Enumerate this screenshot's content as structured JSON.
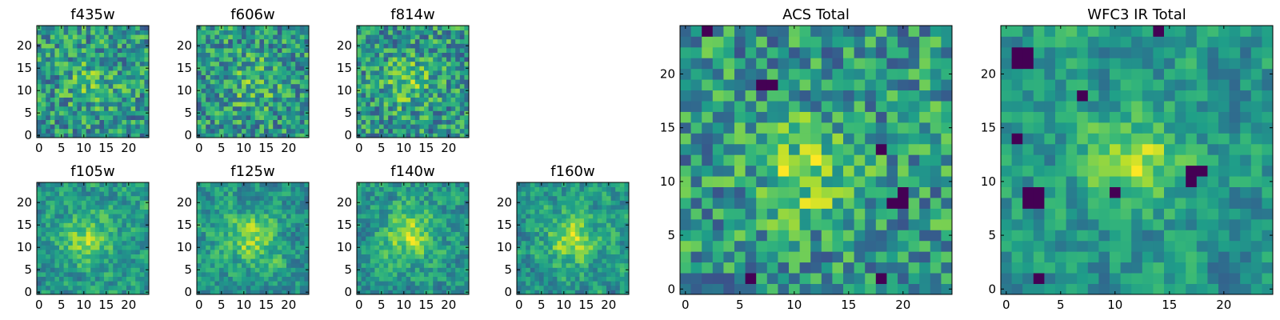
{
  "chart_data": [
    {
      "type": "heatmap",
      "title": "f435w",
      "grid_size": 25,
      "xlim": [
        0,
        24
      ],
      "ylim": [
        0,
        24
      ],
      "xticks": [
        0,
        5,
        10,
        15,
        20
      ],
      "yticks": [
        0,
        5,
        10,
        15,
        20
      ],
      "xtick_labels": [
        "0",
        "5",
        "10",
        "15",
        "20"
      ],
      "ytick_labels": [
        "0",
        "5",
        "10",
        "15",
        "20"
      ],
      "colormap": "viridis",
      "seed": 11,
      "blob_center": [
        12,
        12
      ],
      "blob_amp": 0.15,
      "blob_sigma": 4
    },
    {
      "type": "heatmap",
      "title": "f606w",
      "grid_size": 25,
      "xlim": [
        0,
        24
      ],
      "ylim": [
        0,
        24
      ],
      "xticks": [
        0,
        5,
        10,
        15,
        20
      ],
      "yticks": [
        0,
        5,
        10,
        15,
        20
      ],
      "xtick_labels": [
        "0",
        "5",
        "10",
        "15",
        "20"
      ],
      "ytick_labels": [
        "0",
        "5",
        "10",
        "15",
        "20"
      ],
      "colormap": "viridis",
      "seed": 23,
      "blob_center": [
        12,
        12
      ],
      "blob_amp": 0.15,
      "blob_sigma": 4
    },
    {
      "type": "heatmap",
      "title": "f814w",
      "grid_size": 25,
      "xlim": [
        0,
        24
      ],
      "ylim": [
        0,
        24
      ],
      "xticks": [
        0,
        5,
        10,
        15,
        20
      ],
      "yticks": [
        0,
        5,
        10,
        15,
        20
      ],
      "xtick_labels": [
        "0",
        "5",
        "10",
        "15",
        "20"
      ],
      "ytick_labels": [
        "0",
        "5",
        "10",
        "15",
        "20"
      ],
      "colormap": "viridis",
      "seed": 37,
      "blob_center": [
        11,
        12
      ],
      "blob_amp": 0.2,
      "blob_sigma": 4
    },
    {
      "type": "heatmap",
      "title": "f105w",
      "grid_size": 25,
      "xlim": [
        0,
        24
      ],
      "ylim": [
        0,
        24
      ],
      "xticks": [
        0,
        5,
        10,
        15,
        20
      ],
      "yticks": [
        0,
        5,
        10,
        15,
        20
      ],
      "xtick_labels": [
        "0",
        "5",
        "10",
        "15",
        "20"
      ],
      "ytick_labels": [
        "0",
        "5",
        "10",
        "15",
        "20"
      ],
      "colormap": "viridis",
      "seed": 41,
      "blob_center": [
        11,
        12
      ],
      "blob_amp": 0.3,
      "blob_sigma": 4,
      "smooth": true
    },
    {
      "type": "heatmap",
      "title": "f125w",
      "grid_size": 25,
      "xlim": [
        0,
        24
      ],
      "ylim": [
        0,
        24
      ],
      "xticks": [
        0,
        5,
        10,
        15,
        20
      ],
      "yticks": [
        0,
        5,
        10,
        15,
        20
      ],
      "xtick_labels": [
        "0",
        "5",
        "10",
        "15",
        "20"
      ],
      "ytick_labels": [
        "0",
        "5",
        "10",
        "15",
        "20"
      ],
      "colormap": "viridis",
      "seed": 53,
      "blob_center": [
        12,
        12
      ],
      "blob_amp": 0.3,
      "blob_sigma": 4,
      "smooth": true
    },
    {
      "type": "heatmap",
      "title": "f140w",
      "grid_size": 25,
      "xlim": [
        0,
        24
      ],
      "ylim": [
        0,
        24
      ],
      "xticks": [
        0,
        5,
        10,
        15,
        20
      ],
      "yticks": [
        0,
        5,
        10,
        15,
        20
      ],
      "xtick_labels": [
        "0",
        "5",
        "10",
        "15",
        "20"
      ],
      "ytick_labels": [
        "0",
        "5",
        "10",
        "15",
        "20"
      ],
      "colormap": "viridis",
      "seed": 67,
      "blob_center": [
        11,
        13
      ],
      "blob_amp": 0.35,
      "blob_sigma": 4,
      "smooth": true
    },
    {
      "type": "heatmap",
      "title": "f160w",
      "grid_size": 25,
      "xlim": [
        0,
        24
      ],
      "ylim": [
        0,
        24
      ],
      "xticks": [
        0,
        5,
        10,
        15,
        20
      ],
      "yticks": [
        0,
        5,
        10,
        15,
        20
      ],
      "xtick_labels": [
        "0",
        "5",
        "10",
        "15",
        "20"
      ],
      "ytick_labels": [
        "0",
        "5",
        "10",
        "15",
        "20"
      ],
      "colormap": "viridis",
      "seed": 79,
      "blob_center": [
        12,
        12
      ],
      "blob_amp": 0.35,
      "blob_sigma": 4,
      "smooth": true
    },
    {
      "type": "heatmap",
      "title": "ACS Total",
      "grid_size": 25,
      "xlim": [
        0,
        24
      ],
      "ylim": [
        0,
        24
      ],
      "xticks": [
        0,
        5,
        10,
        15,
        20
      ],
      "yticks": [
        0,
        5,
        10,
        15,
        20
      ],
      "xtick_labels": [
        "0",
        "5",
        "10",
        "15",
        "20"
      ],
      "ytick_labels": [
        "0",
        "5",
        "10",
        "15",
        "20"
      ],
      "colormap": "viridis",
      "seed": 97,
      "blob_center": [
        11,
        11
      ],
      "blob_amp": 0.3,
      "blob_sigma": 3,
      "dark_spots": [
        [
          20,
          8
        ],
        [
          20,
          9
        ],
        [
          19,
          8
        ],
        [
          6,
          1
        ],
        [
          7,
          19
        ],
        [
          8,
          19
        ],
        [
          2,
          24
        ],
        [
          18,
          13
        ],
        [
          18,
          1
        ]
      ]
    },
    {
      "type": "heatmap",
      "title": "WFC3 IR Total",
      "grid_size": 25,
      "xlim": [
        0,
        24
      ],
      "ylim": [
        0,
        24
      ],
      "xticks": [
        0,
        5,
        10,
        15,
        20
      ],
      "yticks": [
        0,
        5,
        10,
        15,
        20
      ],
      "xtick_labels": [
        "0",
        "5",
        "10",
        "15",
        "20"
      ],
      "ytick_labels": [
        "0",
        "5",
        "10",
        "15",
        "20"
      ],
      "colormap": "viridis",
      "seed": 131,
      "blob_center": [
        12,
        12
      ],
      "blob_amp": 0.35,
      "blob_sigma": 3,
      "smooth": true,
      "dark_spots": [
        [
          1,
          22
        ],
        [
          2,
          22
        ],
        [
          2,
          21
        ],
        [
          1,
          21
        ],
        [
          2,
          9
        ],
        [
          3,
          9
        ],
        [
          2,
          8
        ],
        [
          3,
          8
        ],
        [
          17,
          11
        ],
        [
          18,
          11
        ],
        [
          17,
          10
        ],
        [
          7,
          18
        ],
        [
          10,
          9
        ],
        [
          1,
          14
        ],
        [
          14,
          24
        ],
        [
          3,
          1
        ]
      ]
    }
  ]
}
